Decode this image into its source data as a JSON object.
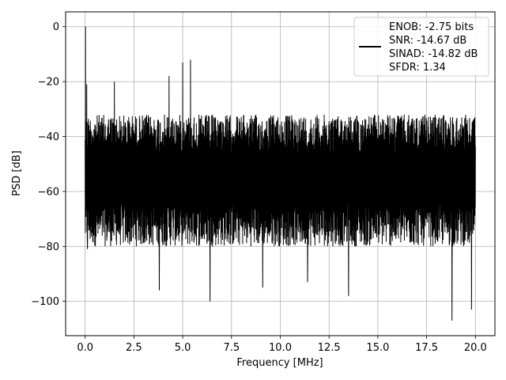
{
  "chart_data": {
    "type": "line",
    "title": "",
    "xlabel": "Frequency [MHz]",
    "ylabel": "PSD [dB]",
    "xlim": [
      -1.0,
      21.0
    ],
    "ylim": [
      -112.5,
      5.4
    ],
    "x_ticks": [
      0.0,
      2.5,
      5.0,
      7.5,
      10.0,
      12.5,
      15.0,
      17.5,
      20.0
    ],
    "x_tick_labels": [
      "0.0",
      "2.5",
      "5.0",
      "7.5",
      "10.0",
      "12.5",
      "15.0",
      "17.5",
      "20.0"
    ],
    "y_ticks": [
      0,
      -20,
      -40,
      -60,
      -80,
      -100
    ],
    "y_tick_labels": [
      "0",
      "−20",
      "−40",
      "−60",
      "−80",
      "−100"
    ],
    "grid": true,
    "legend_position": "top-right",
    "series": [
      {
        "name": "ENOB: -2.75 bits\nSNR: -14.67 dB\nSINAD: -14.82 dB\nSFDR: 1.34",
        "color": "#000000",
        "x_range": [
          0.0,
          20.0
        ],
        "noise_envelope_db": [
          -80,
          -32
        ],
        "peaks": [
          {
            "x": 0.02,
            "y": 0
          },
          {
            "x": 0.08,
            "y": -21
          },
          {
            "x": 0.12,
            "y": -81
          },
          {
            "x": 1.5,
            "y": -20
          },
          {
            "x": 3.8,
            "y": -96
          },
          {
            "x": 4.3,
            "y": -18
          },
          {
            "x": 5.0,
            "y": -13
          },
          {
            "x": 5.4,
            "y": -12
          },
          {
            "x": 6.4,
            "y": -100
          },
          {
            "x": 9.1,
            "y": -95
          },
          {
            "x": 11.4,
            "y": -93
          },
          {
            "x": 13.5,
            "y": -98
          },
          {
            "x": 18.8,
            "y": -107
          },
          {
            "x": 19.8,
            "y": -103
          }
        ]
      }
    ],
    "legend_lines": [
      "ENOB: -2.75 bits",
      "SNR: -14.67 dB",
      "SINAD: -14.82 dB",
      "SFDR: 1.34"
    ]
  }
}
